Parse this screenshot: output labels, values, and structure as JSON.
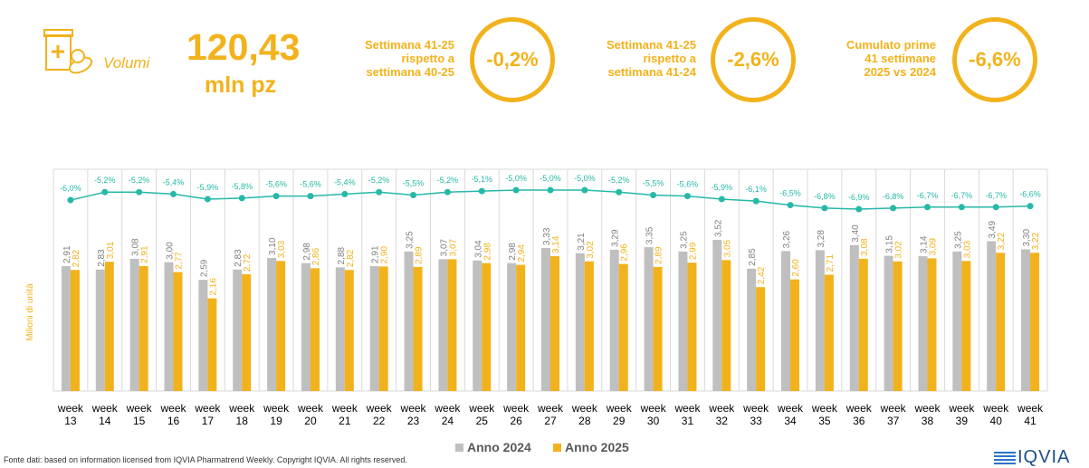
{
  "header": {
    "volumi_label": "Volumi",
    "total_value": "120,43",
    "total_unit": "mln pz",
    "stats": [
      {
        "text": [
          "Settimana 41-25",
          "rispetto a",
          "settimana 40-25"
        ],
        "value": "-0,2%"
      },
      {
        "text": [
          "Settimana 41-25",
          "rispetto a",
          "settimana 41-24"
        ],
        "value": "-2,6%"
      },
      {
        "text": [
          "Cumulato prime",
          "41 settimane",
          "2025 vs 2024"
        ],
        "value": "-6,6%"
      }
    ]
  },
  "colors": {
    "accent": "#f2b21b",
    "bar_2024": "#bfbfbf",
    "bar_2025": "#f2b21b",
    "line": "#26b8a8"
  },
  "chart_data": {
    "type": "bar",
    "ylabel": "Milioni di unità",
    "categories": [
      "13",
      "14",
      "15",
      "16",
      "17",
      "18",
      "19",
      "20",
      "21",
      "22",
      "23",
      "24",
      "25",
      "26",
      "27",
      "28",
      "29",
      "30",
      "31",
      "32",
      "33",
      "34",
      "35",
      "36",
      "37",
      "38",
      "39",
      "40",
      "41"
    ],
    "category_prefix": "week",
    "series": [
      {
        "name": "Anno 2024",
        "values": [
          2.91,
          2.83,
          3.08,
          3.0,
          2.59,
          2.83,
          3.1,
          2.98,
          2.88,
          2.91,
          3.25,
          3.07,
          3.04,
          2.98,
          3.33,
          3.21,
          3.29,
          3.35,
          3.25,
          3.52,
          2.85,
          3.26,
          3.28,
          3.4,
          3.15,
          3.14,
          3.25,
          3.49,
          3.3
        ],
        "labels": [
          "2,91",
          "2,83",
          "3,08",
          "3,00",
          "2,59",
          "2,83",
          "3,10",
          "2,98",
          "2,88",
          "2,91",
          "3,25",
          "3,07",
          "3,04",
          "2,98",
          "3,33",
          "3,21",
          "3,29",
          "3,35",
          "3,25",
          "3,52",
          "2,85",
          "3,26",
          "3,28",
          "3,40",
          "3,15",
          "3,14",
          "3,25",
          "3,49",
          "3,30"
        ]
      },
      {
        "name": "Anno 2025",
        "values": [
          2.82,
          3.01,
          2.91,
          2.77,
          2.16,
          2.72,
          3.03,
          2.86,
          2.82,
          2.9,
          2.89,
          3.07,
          2.98,
          2.94,
          3.14,
          3.02,
          2.96,
          2.89,
          2.99,
          3.05,
          2.42,
          2.6,
          2.71,
          3.08,
          3.02,
          3.09,
          3.03,
          3.22,
          3.22
        ],
        "labels": [
          "2,82",
          "3,01",
          "2,91",
          "2,77",
          "2,16",
          "2,72",
          "3,03",
          "2,86",
          "2,82",
          "2,90",
          "2,89",
          "3,07",
          "2,98",
          "2,94",
          "3,14",
          "3,02",
          "2,96",
          "2,89",
          "2,99",
          "3,05",
          "2,42",
          "2,60",
          "2,71",
          "3,08",
          "3,02",
          "3,09",
          "3,03",
          "3,22",
          "3,22"
        ]
      }
    ],
    "line": {
      "values": [
        -6.0,
        -5.2,
        -5.2,
        -5.4,
        -5.9,
        -5.8,
        -5.6,
        -5.6,
        -5.4,
        -5.2,
        -5.5,
        -5.2,
        -5.1,
        -5.0,
        -5.0,
        -5.0,
        -5.2,
        -5.5,
        -5.6,
        -5.9,
        -6.1,
        -6.5,
        -6.8,
        -6.9,
        -6.8,
        -6.7,
        -6.7,
        -6.7,
        -6.6
      ],
      "labels": [
        "-6,0%",
        "-5,2%",
        "-5,2%",
        "-5,4%",
        "-5,9%",
        "-5,8%",
        "-5,6%",
        "-5,6%",
        "-5,4%",
        "-5,2%",
        "-5,5%",
        "-5,2%",
        "-5,1%",
        "-5,0%",
        "-5,0%",
        "-5,0%",
        "-5,2%",
        "-5,5%",
        "-5,6%",
        "-5,9%",
        "-6,1%",
        "-6,5%",
        "-6,8%",
        "-6,9%",
        "-6,8%",
        "-6,7%",
        "-6,7%",
        "-6,7%",
        "-6,6%"
      ]
    },
    "ylim": [
      0,
      3.9
    ],
    "legend_position": "bottom"
  },
  "footer": {
    "source": "Fonte dati: based on information licensed from IQVIA Pharmatrend Weekly. Copyright IQVIA. All rights reserved.",
    "logo": "IQVIA"
  }
}
